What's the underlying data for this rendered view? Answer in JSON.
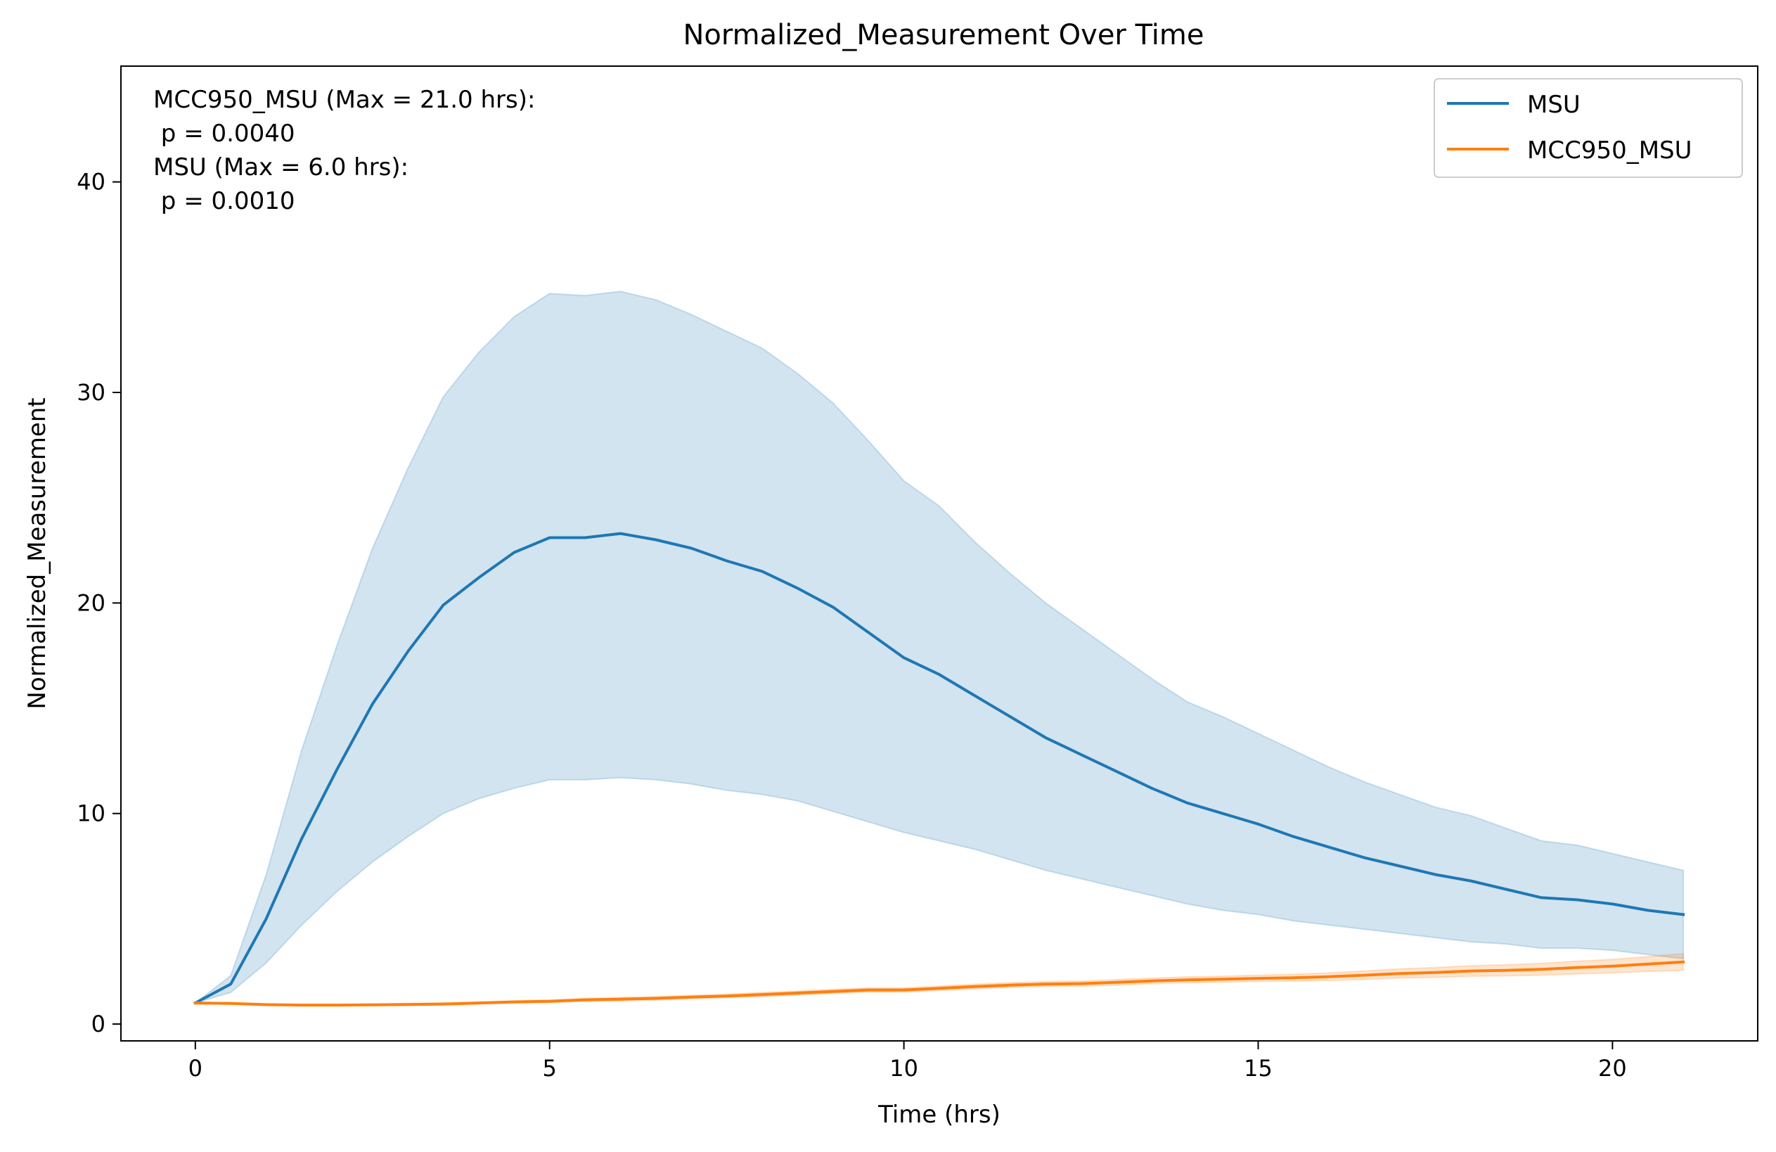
{
  "chart_data": {
    "type": "line",
    "title": "Normalized_Measurement Over Time",
    "xlabel": "Time (hrs)",
    "ylabel": "Normalized_Measurement",
    "xlim": [
      -1.05,
      22.05
    ],
    "ylim": [
      -0.8,
      45.5
    ],
    "xticks": [
      0,
      5,
      10,
      15,
      20
    ],
    "yticks": [
      0,
      10,
      20,
      30,
      40
    ],
    "grid": false,
    "legend_position": "top-right",
    "annotation": [
      "MCC950_MSU (Max = 21.0 hrs):",
      " p = 0.0040",
      "MSU (Max = 6.0 hrs):",
      " p = 0.0010"
    ],
    "series": [
      {
        "name": "MSU",
        "color": "#1f77b4",
        "band_color": "#1f77b4",
        "x": [
          0,
          0.5,
          1,
          1.5,
          2,
          2.5,
          3,
          3.5,
          4,
          4.5,
          5,
          5.5,
          6,
          6.5,
          7,
          7.5,
          8,
          8.5,
          9,
          9.5,
          10,
          10.5,
          11,
          11.5,
          12,
          12.5,
          13,
          13.5,
          14,
          14.5,
          15,
          15.5,
          16,
          16.5,
          17,
          17.5,
          18,
          18.5,
          19,
          19.5,
          20,
          20.5,
          21
        ],
        "y": [
          1.0,
          1.9,
          5.0,
          8.8,
          12.1,
          15.2,
          17.7,
          19.9,
          21.2,
          22.4,
          23.1,
          23.1,
          23.3,
          23.0,
          22.6,
          22.0,
          21.5,
          20.7,
          19.8,
          18.6,
          17.4,
          16.6,
          15.6,
          14.6,
          13.6,
          12.8,
          12.0,
          11.2,
          10.5,
          10.0,
          9.5,
          8.9,
          8.4,
          7.9,
          7.5,
          7.1,
          6.8,
          6.4,
          6.0,
          5.9,
          5.7,
          5.4,
          5.2
        ],
        "lower": [
          1.0,
          1.5,
          2.9,
          4.7,
          6.3,
          7.7,
          8.9,
          10.0,
          10.7,
          11.2,
          11.6,
          11.6,
          11.7,
          11.6,
          11.4,
          11.1,
          10.9,
          10.6,
          10.1,
          9.6,
          9.1,
          8.7,
          8.3,
          7.8,
          7.3,
          6.9,
          6.5,
          6.1,
          5.7,
          5.4,
          5.2,
          4.9,
          4.7,
          4.5,
          4.3,
          4.1,
          3.9,
          3.8,
          3.6,
          3.6,
          3.5,
          3.3,
          3.1
        ],
        "upper": [
          1.0,
          2.3,
          7.1,
          13.0,
          18.0,
          22.6,
          26.4,
          29.8,
          31.9,
          33.6,
          34.7,
          34.6,
          34.8,
          34.4,
          33.7,
          32.9,
          32.1,
          30.9,
          29.5,
          27.7,
          25.8,
          24.6,
          22.9,
          21.4,
          20.0,
          18.8,
          17.6,
          16.4,
          15.3,
          14.6,
          13.8,
          13.0,
          12.2,
          11.5,
          10.9,
          10.3,
          9.9,
          9.3,
          8.7,
          8.5,
          8.1,
          7.7,
          7.3
        ]
      },
      {
        "name": "MCC950_MSU",
        "color": "#ff7f0e",
        "band_color": "#ff7f0e",
        "x": [
          0,
          0.5,
          1,
          1.5,
          2,
          2.5,
          3,
          3.5,
          4,
          4.5,
          5,
          5.5,
          6,
          6.5,
          7,
          7.5,
          8,
          8.5,
          9,
          9.5,
          10,
          10.5,
          11,
          11.5,
          12,
          12.5,
          13,
          13.5,
          14,
          14.5,
          15,
          15.5,
          16,
          16.5,
          17,
          17.5,
          18,
          18.5,
          19,
          19.5,
          20,
          20.5,
          21
        ],
        "y": [
          1.0,
          0.98,
          0.92,
          0.9,
          0.9,
          0.91,
          0.93,
          0.95,
          1.0,
          1.05,
          1.08,
          1.15,
          1.18,
          1.22,
          1.28,
          1.33,
          1.4,
          1.47,
          1.55,
          1.62,
          1.62,
          1.7,
          1.78,
          1.85,
          1.9,
          1.92,
          1.98,
          2.05,
          2.1,
          2.13,
          2.17,
          2.2,
          2.25,
          2.32,
          2.4,
          2.45,
          2.52,
          2.55,
          2.6,
          2.68,
          2.75,
          2.85,
          2.95
        ],
        "lower": [
          1.0,
          0.95,
          0.88,
          0.86,
          0.86,
          0.87,
          0.88,
          0.9,
          0.95,
          1.0,
          1.02,
          1.08,
          1.1,
          1.14,
          1.2,
          1.25,
          1.3,
          1.37,
          1.45,
          1.52,
          1.52,
          1.6,
          1.67,
          1.74,
          1.78,
          1.8,
          1.85,
          1.92,
          1.96,
          1.99,
          2.02,
          2.04,
          2.07,
          2.12,
          2.18,
          2.22,
          2.27,
          2.29,
          2.32,
          2.38,
          2.43,
          2.5,
          2.55
        ],
        "upper": [
          1.0,
          1.01,
          0.96,
          0.94,
          0.94,
          0.95,
          0.98,
          1.0,
          1.05,
          1.1,
          1.14,
          1.22,
          1.26,
          1.3,
          1.36,
          1.41,
          1.5,
          1.57,
          1.65,
          1.72,
          1.72,
          1.8,
          1.89,
          1.96,
          2.02,
          2.04,
          2.11,
          2.18,
          2.24,
          2.27,
          2.32,
          2.36,
          2.43,
          2.52,
          2.62,
          2.68,
          2.77,
          2.81,
          2.88,
          2.98,
          3.07,
          3.2,
          3.35
        ]
      }
    ]
  }
}
